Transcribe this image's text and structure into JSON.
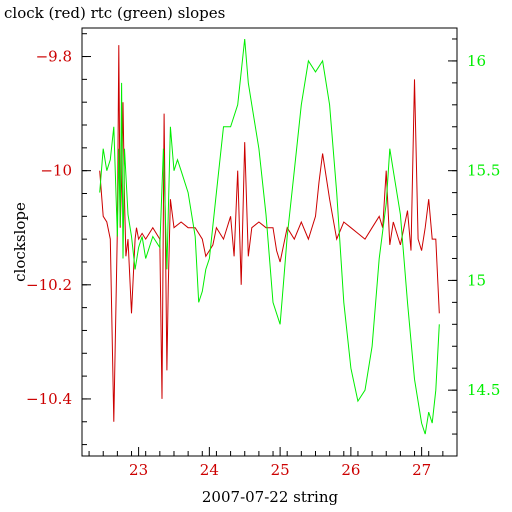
{
  "chart_data": {
    "type": "line",
    "title": "clock (red) rtc (green) slopes",
    "xlabel": "2007-07-22 string",
    "ylabel": "clockslope",
    "xlim": [
      22.2,
      27.5
    ],
    "xticks": [
      23,
      24,
      25,
      26,
      27
    ],
    "ylim": [
      -10.5,
      -9.75
    ],
    "yticks": [
      -10.4,
      -10.2,
      -10,
      -9.8
    ],
    "y2lim": [
      14.2,
      16.15
    ],
    "y2ticks": [
      14.5,
      15,
      15.5,
      16
    ],
    "colors": {
      "clock": "#cc0000",
      "rtc": "#00ee00",
      "axis": "#000000"
    },
    "series": [
      {
        "name": "clock",
        "axis": "left",
        "x": [
          22.45,
          22.5,
          22.55,
          22.6,
          22.65,
          22.7,
          22.72,
          22.74,
          22.76,
          22.78,
          22.8,
          22.82,
          22.85,
          22.9,
          22.95,
          22.97,
          23,
          23.05,
          23.1,
          23.2,
          23.3,
          23.33,
          23.36,
          23.4,
          23.42,
          23.45,
          23.5,
          23.6,
          23.7,
          23.8,
          23.9,
          23.95,
          24,
          24.05,
          24.1,
          24.2,
          24.3,
          24.35,
          24.4,
          24.45,
          24.5,
          24.55,
          24.6,
          24.7,
          24.8,
          24.9,
          24.95,
          25,
          25.1,
          25.2,
          25.3,
          25.4,
          25.5,
          25.55,
          25.6,
          25.7,
          25.8,
          25.9,
          26,
          26.1,
          26.2,
          26.3,
          26.4,
          26.45,
          26.5,
          26.55,
          26.6,
          26.7,
          26.8,
          26.85,
          26.9,
          26.95,
          27,
          27.05,
          27.1,
          27.15,
          27.2,
          27.25
        ],
        "y": [
          -10,
          -10.08,
          -10.09,
          -10.12,
          -10.44,
          -10.1,
          -9.78,
          -10.1,
          -10.02,
          -9.88,
          -10.05,
          -10.15,
          -10.12,
          -10.25,
          -10.12,
          -10.1,
          -10.12,
          -10.11,
          -10.12,
          -10.1,
          -10.12,
          -10.4,
          -9.9,
          -10.35,
          -10.2,
          -10.05,
          -10.1,
          -10.09,
          -10.1,
          -10.1,
          -10.12,
          -10.15,
          -10.14,
          -10.13,
          -10.1,
          -10.12,
          -10.08,
          -10.15,
          -10,
          -10.2,
          -9.95,
          -10.15,
          -10.1,
          -10.09,
          -10.1,
          -10.1,
          -10.14,
          -10.16,
          -10.1,
          -10.12,
          -10.09,
          -10.12,
          -10.08,
          -10.02,
          -9.97,
          -10.05,
          -10.12,
          -10.09,
          -10.1,
          -10.11,
          -10.12,
          -10.1,
          -10.08,
          -10.1,
          -10,
          -10.13,
          -10.09,
          -10.13,
          -10.07,
          -10.14,
          -9.84,
          -10.12,
          -10.14,
          -10.1,
          -10.05,
          -10.12,
          -10.12,
          -10.25
        ]
      },
      {
        "name": "rtc",
        "axis": "right",
        "x": [
          22.45,
          22.5,
          22.55,
          22.6,
          22.65,
          22.7,
          22.72,
          22.74,
          22.76,
          22.78,
          22.8,
          22.85,
          22.9,
          22.95,
          23,
          23.05,
          23.1,
          23.2,
          23.3,
          23.35,
          23.4,
          23.45,
          23.5,
          23.55,
          23.6,
          23.7,
          23.8,
          23.85,
          23.9,
          23.95,
          24,
          24.1,
          24.2,
          24.3,
          24.4,
          24.5,
          24.55,
          24.6,
          24.7,
          24.8,
          24.9,
          25,
          25.05,
          25.1,
          25.2,
          25.3,
          25.4,
          25.5,
          25.6,
          25.7,
          25.8,
          25.9,
          26,
          26.1,
          26.2,
          26.3,
          26.4,
          26.5,
          26.55,
          26.6,
          26.7,
          26.8,
          26.9,
          27,
          27.05,
          27.1,
          27.15,
          27.2,
          27.25
        ],
        "y": [
          15.4,
          15.6,
          15.5,
          15.55,
          15.7,
          15.2,
          15.6,
          15.25,
          15.9,
          15.1,
          15.6,
          15.3,
          15.2,
          15.05,
          15.15,
          15.2,
          15.1,
          15.2,
          15.15,
          15.6,
          15.05,
          15.7,
          15.5,
          15.55,
          15.5,
          15.4,
          15.2,
          14.9,
          14.95,
          15.05,
          15.1,
          15.4,
          15.7,
          15.7,
          15.8,
          16.1,
          15.9,
          15.8,
          15.6,
          15.3,
          14.9,
          14.8,
          15,
          15.2,
          15.5,
          15.8,
          16,
          15.95,
          16,
          15.8,
          15.4,
          14.9,
          14.6,
          14.45,
          14.5,
          14.7,
          15.1,
          15.35,
          15.6,
          15.5,
          15.3,
          14.9,
          14.55,
          14.35,
          14.3,
          14.4,
          14.35,
          14.5,
          14.8
        ]
      }
    ]
  }
}
